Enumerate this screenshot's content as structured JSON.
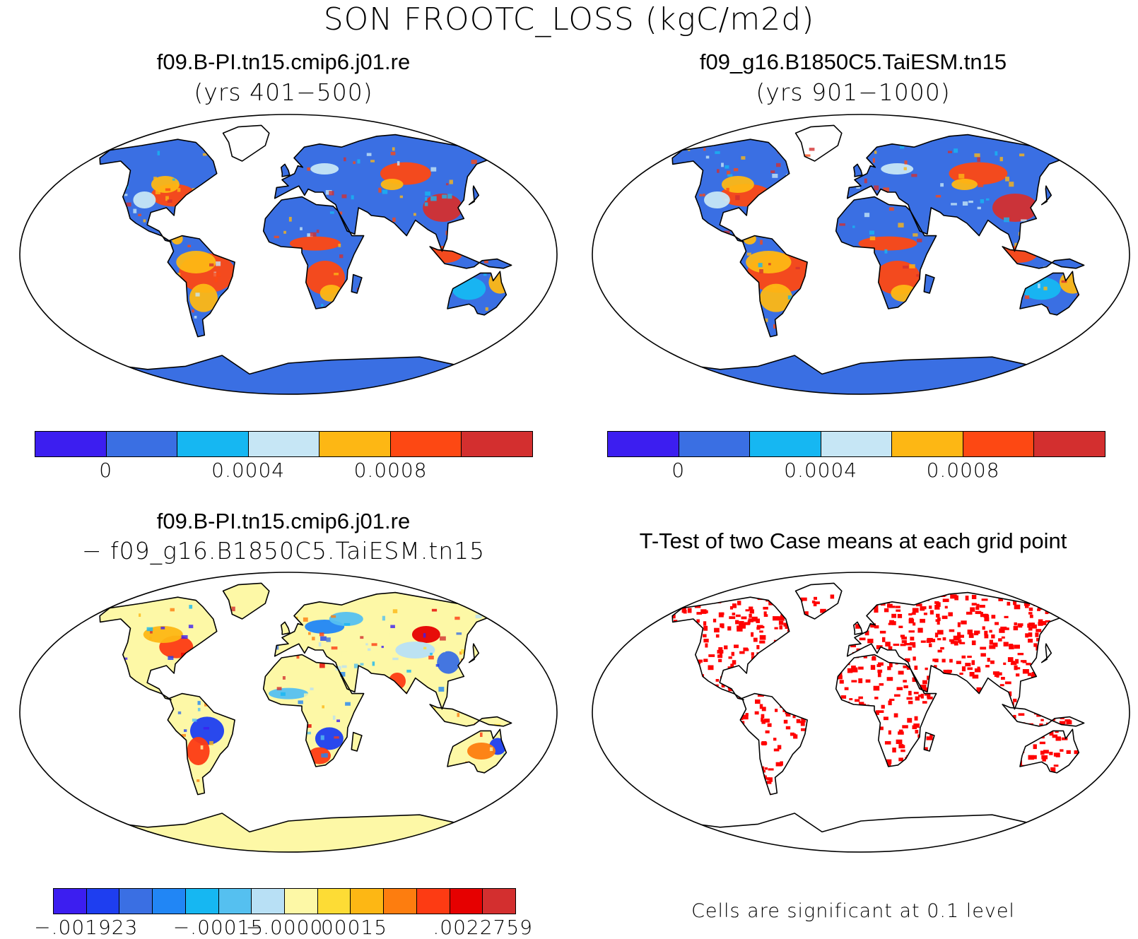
{
  "figure": {
    "title": "SON FROOTC_LOSS (kgC/m2d)"
  },
  "panels": [
    {
      "id": "case1",
      "title": "f09.B-PI.tn15.cmip6.j01.re",
      "subtitle": "(yrs 401−500)",
      "colorbar": {
        "colors": [
          "#3c1ef0",
          "#3a6fe3",
          "#16b7f2",
          "#c6e6f5",
          "#fdb714",
          "#fd4813",
          "#d32f2f"
        ],
        "tick_labels": [
          "0",
          "0.0004",
          "0.0008"
        ],
        "tick_boundaries": [
          1,
          3,
          5
        ]
      }
    },
    {
      "id": "case2",
      "title": "f09_g16.B1850C5.TaiESM.tn15",
      "subtitle": "(yrs 901−1000)",
      "colorbar": {
        "colors": [
          "#3c1ef0",
          "#3a6fe3",
          "#16b7f2",
          "#c6e6f5",
          "#fdb714",
          "#fd4813",
          "#d32f2f"
        ],
        "tick_labels": [
          "0",
          "0.0004",
          "0.0008"
        ],
        "tick_boundaries": [
          1,
          3,
          5
        ]
      }
    },
    {
      "id": "difference",
      "title": "f09.B-PI.tn15.cmip6.j01.re",
      "subtitle": "− f09_g16.B1850C5.TaiESM.tn15",
      "colorbar": {
        "colors": [
          "#3c1ef0",
          "#1e3ef0",
          "#3a6fe3",
          "#2186f5",
          "#16b7f2",
          "#55c0f0",
          "#b8e0f5",
          "#fdf8a6",
          "#fddc35",
          "#fdb714",
          "#fd7d0f",
          "#fd3b13",
          "#e60000",
          "#d32f2f"
        ],
        "tick_labels": [
          "−.001923",
          "−.00015",
          "−.0000",
          ".00015",
          ".0022759"
        ],
        "tick_boundaries": [
          1,
          5,
          7,
          9,
          13
        ]
      }
    },
    {
      "id": "ttest",
      "title": "T-Test of two Case means at each grid point",
      "significance_color": "#ff0000",
      "note": "Cells are significant at 0.1 level"
    }
  ]
}
